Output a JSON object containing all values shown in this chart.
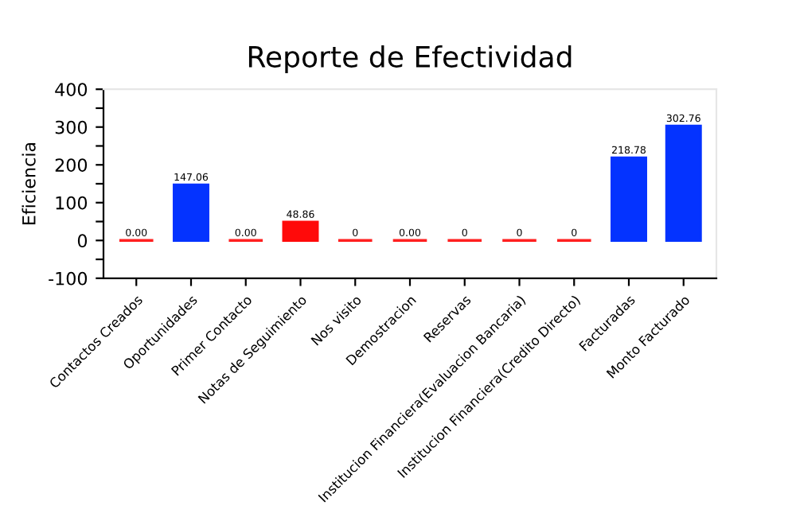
{
  "chart_data": {
    "type": "bar",
    "title": "Reporte de Efectividad",
    "ylabel": "Eficiencia",
    "categories": [
      "Contactos Creados",
      "Oportunidades",
      "Primer Contacto",
      "Notas de Seguimiento",
      "Nos visito",
      "Demostracion",
      "Reservas",
      "Institucion Financiera(Evaluacion Bancaria)",
      "Institucion Financiera(Credito Directo)",
      "Facturadas",
      "Monto Facturado"
    ],
    "values": [
      0,
      147.06,
      0,
      48.86,
      0,
      0,
      0,
      0,
      0,
      218.78,
      302.76
    ],
    "value_labels": [
      "0.00",
      "147.06",
      "0.00",
      "48.86",
      "0",
      "0.00",
      "0",
      "0",
      "0",
      "218.78",
      "302.76"
    ],
    "colors": [
      "#ff2020",
      "#0433ff",
      "#ff2020",
      "#ff0a0a",
      "#ff2020",
      "#ff2020",
      "#ff2020",
      "#ff2020",
      "#ff2020",
      "#0433ff",
      "#0433ff"
    ],
    "ylim": [
      -100,
      400
    ],
    "yticks": [
      -100,
      {
        "value": -50,
        "label": null
      },
      0,
      {
        "value": 50,
        "label": null
      },
      100,
      {
        "value": 150,
        "label": null
      },
      200,
      {
        "value": 250,
        "label": null
      },
      300,
      {
        "value": 350,
        "label": null
      },
      400
    ],
    "grid": false,
    "legend": false
  }
}
